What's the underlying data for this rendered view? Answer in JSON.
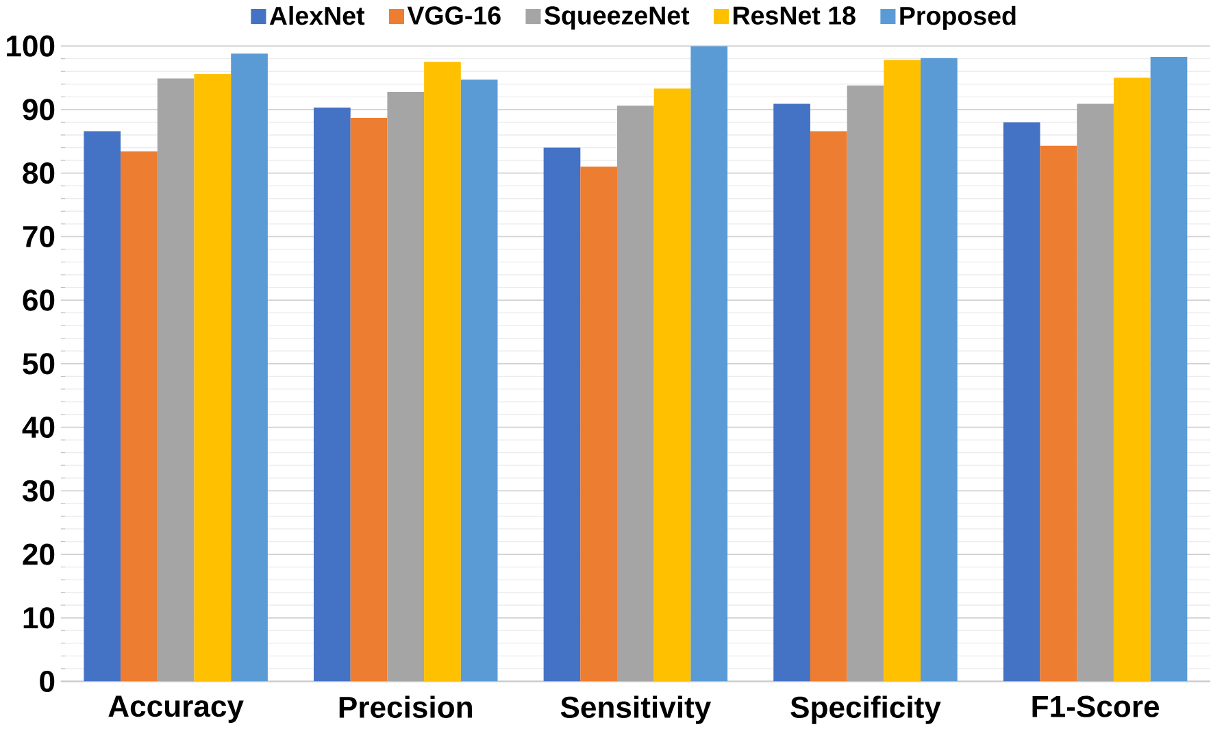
{
  "chart_data": {
    "type": "bar",
    "categories": [
      "Accuracy",
      "Precision",
      "Sensitivity",
      "Specificity",
      "F1-Score"
    ],
    "series": [
      {
        "name": "AlexNet",
        "color": "#4472c4",
        "values": [
          86.6,
          90.3,
          84.0,
          90.9,
          88.0
        ]
      },
      {
        "name": "VGG-16",
        "color": "#ed7d31",
        "values": [
          83.4,
          88.7,
          81.0,
          86.6,
          84.3
        ]
      },
      {
        "name": "SqueezeNet",
        "color": "#a5a5a5",
        "values": [
          94.9,
          92.8,
          90.6,
          93.8,
          90.9
        ]
      },
      {
        "name": "ResNet 18",
        "color": "#ffc000",
        "values": [
          95.6,
          97.5,
          93.3,
          97.8,
          95.0
        ]
      },
      {
        "name": "Proposed",
        "color": "#5b9bd5",
        "values": [
          98.8,
          94.7,
          100,
          98.1,
          98.3
        ]
      }
    ],
    "ylim": [
      0,
      100
    ],
    "yticks": [
      0,
      10,
      20,
      30,
      40,
      50,
      60,
      70,
      80,
      90,
      100
    ],
    "grid": "y",
    "legend": "top"
  }
}
